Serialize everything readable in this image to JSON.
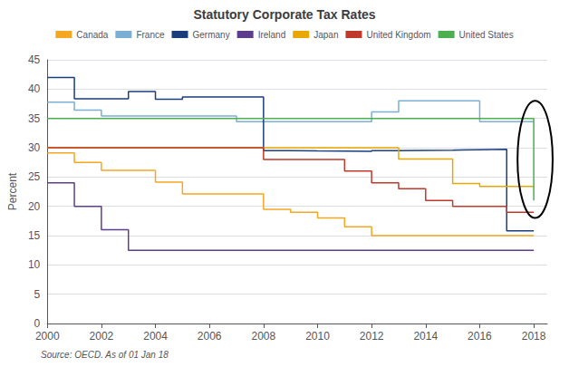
{
  "chart_data": {
    "type": "step",
    "title": "Statutory Corporate Tax Rates",
    "ylabel": "Percent",
    "annotations": [
      "Source: OECD. As of 01 Jan 18"
    ],
    "x": [
      2000,
      2001,
      2002,
      2003,
      2004,
      2005,
      2006,
      2007,
      2008,
      2009,
      2010,
      2011,
      2012,
      2013,
      2014,
      2015,
      2016,
      2017,
      2018
    ],
    "series": [
      {
        "name": "Canada",
        "color": "#f5a623",
        "values": [
          29.12,
          27.5,
          26.12,
          26.12,
          24.12,
          22.12,
          22.12,
          22.12,
          19.5,
          19.0,
          18.0,
          16.5,
          15.0,
          15.0,
          15.0,
          15.0,
          15.0,
          15.0,
          15.0
        ]
      },
      {
        "name": "France",
        "color": "#7bafd4",
        "values": [
          37.76,
          36.43,
          35.43,
          35.43,
          35.43,
          35.43,
          35.43,
          34.43,
          34.43,
          34.43,
          34.43,
          34.43,
          36.1,
          38.0,
          38.0,
          38.0,
          34.43,
          34.43,
          34.43
        ]
      },
      {
        "name": "Germany",
        "color": "#1a3d7c",
        "values": [
          42.0,
          38.36,
          38.36,
          39.58,
          38.29,
          38.65,
          38.65,
          38.65,
          29.51,
          29.44,
          29.41,
          29.37,
          29.48,
          29.55,
          29.58,
          29.65,
          29.72,
          15.825,
          15.825
        ]
      },
      {
        "name": "Ireland",
        "color": "#5c3d8f",
        "values": [
          24.0,
          20.0,
          16.0,
          12.5,
          12.5,
          12.5,
          12.5,
          12.5,
          12.5,
          12.5,
          12.5,
          12.5,
          12.5,
          12.5,
          12.5,
          12.5,
          12.5,
          12.5,
          12.5
        ]
      },
      {
        "name": "Japan",
        "color": "#e8a800",
        "values": [
          30.0,
          30.0,
          30.0,
          30.0,
          30.0,
          30.0,
          30.0,
          30.0,
          30.0,
          30.0,
          30.0,
          30.0,
          30.0,
          28.05,
          28.05,
          23.9,
          23.4,
          23.4,
          23.4
        ]
      },
      {
        "name": "United Kingdom",
        "color": "#c0392b",
        "values": [
          30.0,
          30.0,
          30.0,
          30.0,
          30.0,
          30.0,
          30.0,
          30.0,
          28.0,
          28.0,
          28.0,
          26.0,
          24.0,
          23.0,
          21.0,
          20.0,
          20.0,
          19.0,
          19.0
        ]
      },
      {
        "name": "United States",
        "color": "#4caf50",
        "values": [
          35.0,
          35.0,
          35.0,
          35.0,
          35.0,
          35.0,
          35.0,
          35.0,
          35.0,
          35.0,
          35.0,
          35.0,
          35.0,
          35.0,
          35.0,
          35.0,
          35.0,
          35.0,
          21.0
        ]
      }
    ],
    "xlim": [
      2000,
      2018.5
    ],
    "xticks": [
      2000,
      2002,
      2004,
      2006,
      2008,
      2010,
      2012,
      2014,
      2016,
      2018
    ],
    "ylim": [
      0,
      45
    ],
    "yticks": [
      0,
      5,
      10,
      15,
      20,
      25,
      30,
      35,
      40,
      45
    ],
    "grid": true,
    "legend": "top",
    "ellipse": {
      "x_center": 2018.05,
      "y_center": 28.0,
      "width": 1.3,
      "height": 20
    }
  }
}
